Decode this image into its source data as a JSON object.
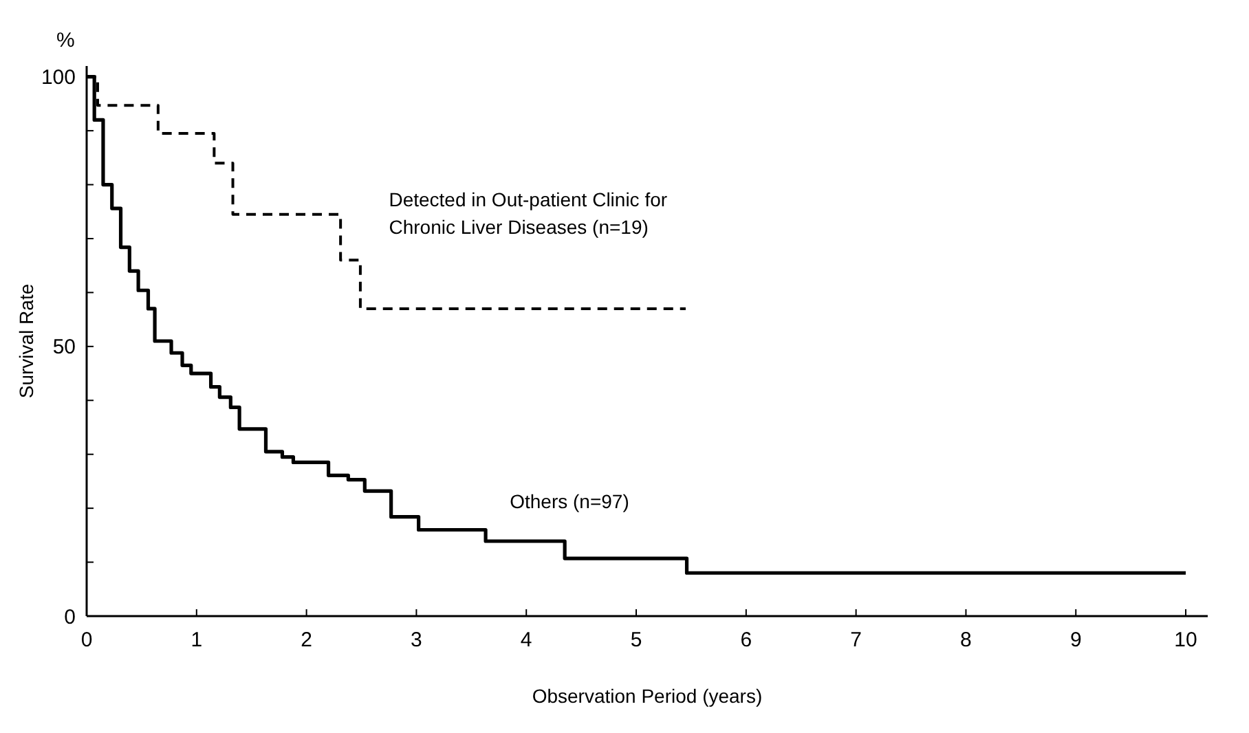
{
  "chart_data": {
    "type": "step",
    "xlabel": "Observation Period (years)",
    "ylabel": "Survival Rate",
    "annotations": [
      "%"
    ],
    "xlim": [
      0,
      10.2
    ],
    "xticks": [
      0,
      1,
      2,
      3,
      4,
      5,
      6,
      7,
      8,
      9,
      10
    ],
    "ylim": [
      0,
      102
    ],
    "yticks": [
      0,
      {
        "value": 10,
        "label": null
      },
      {
        "value": 20,
        "label": null
      },
      {
        "value": 30,
        "label": null
      },
      {
        "value": 40,
        "label": null
      },
      50,
      {
        "value": 60,
        "label": null
      },
      {
        "value": 70,
        "label": null
      },
      {
        "value": 80,
        "label": null
      },
      {
        "value": 90,
        "label": null
      },
      100
    ],
    "grid": false,
    "marker": "none",
    "series": [
      {
        "name": "Detected in Out-patient Clinic for Chronic Liver Diseases (n=19)",
        "color": "#000000",
        "line_style": "dashed",
        "x": [
          0,
          0.1,
          0.65,
          1.16,
          1.33,
          2.31,
          2.49,
          5.45
        ],
        "values": [
          100,
          94.7,
          89.5,
          84,
          74.5,
          66,
          57,
          57
        ]
      },
      {
        "name": "Others (n=97)",
        "color": "#000000",
        "line_style": "solid",
        "x": [
          0,
          0.07,
          0.15,
          0.23,
          0.31,
          0.39,
          0.47,
          0.56,
          0.62,
          0.77,
          0.87,
          0.95,
          1.13,
          1.21,
          1.31,
          1.39,
          1.63,
          1.78,
          1.88,
          2.2,
          2.38,
          2.53,
          2.77,
          3.02,
          3.63,
          4.35,
          5.46,
          10
        ],
        "values": [
          100,
          92,
          80,
          75.6,
          68.4,
          64,
          60.4,
          57,
          51,
          48.8,
          46.5,
          45,
          42.5,
          40.6,
          38.7,
          34.7,
          30.5,
          29.5,
          28.5,
          26.1,
          25.3,
          23.2,
          18.4,
          16,
          13.9,
          10.7,
          8,
          8
        ]
      }
    ]
  }
}
